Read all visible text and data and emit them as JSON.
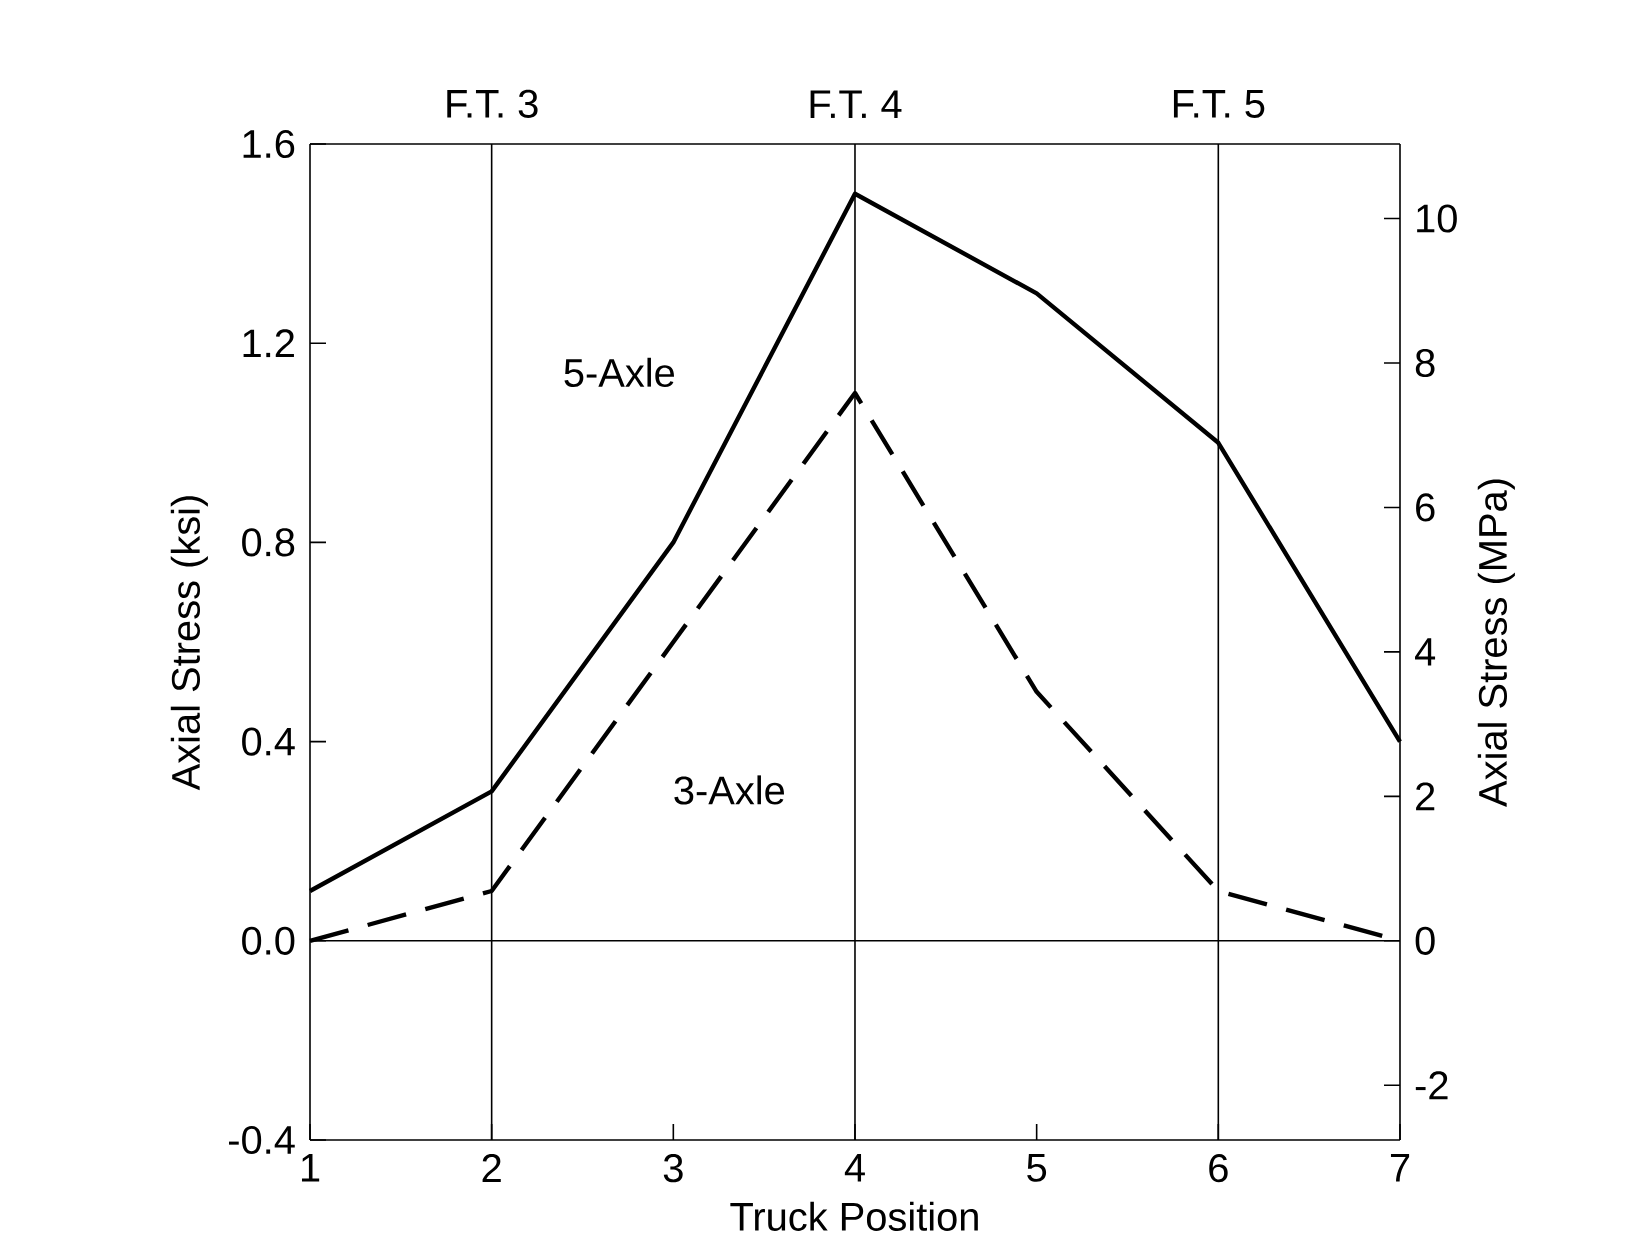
{
  "chart_data": {
    "type": "line",
    "xlabel": "Truck Position",
    "ylabel": "Axial Stress (ksi)",
    "y2label": "Axial Stress (MPa)",
    "x": [
      1,
      2,
      3,
      4,
      5,
      6,
      7
    ],
    "series": [
      {
        "name": "5-Axle",
        "color": "#000000",
        "line_style": "solid",
        "values": [
          0.1,
          0.3,
          0.8,
          1.5,
          1.3,
          1.0,
          0.4
        ]
      },
      {
        "name": "3-Axle",
        "color": "#000000",
        "line_style": "dashed",
        "values": [
          0.0,
          0.1,
          0.6,
          1.1,
          0.5,
          0.1,
          0.0
        ]
      }
    ],
    "xlim": [
      1,
      7
    ],
    "xticks": [
      1,
      2,
      3,
      4,
      5,
      6,
      7
    ],
    "ylim": [
      -0.4,
      1.6
    ],
    "yticks": [
      {
        "value": -0.4,
        "label": "-0.4"
      },
      {
        "value": 0,
        "label": "0.0"
      },
      {
        "value": 0.4,
        "label": "0.4"
      },
      {
        "value": 0.8,
        "label": "0.8"
      },
      {
        "value": 1.2,
        "label": "1.2"
      },
      {
        "value": 1.6,
        "label": "1.6"
      }
    ],
    "y2lim": [
      -2.758,
      11.032
    ],
    "y2ticks": [
      -2,
      0,
      2,
      4,
      6,
      8,
      10
    ],
    "ref_lines": [
      {
        "axis": "x",
        "value": 2,
        "label": "F.T. 3"
      },
      {
        "axis": "x",
        "value": 4,
        "label": "F.T. 4"
      },
      {
        "axis": "x",
        "value": 6,
        "label": "F.T. 5"
      },
      {
        "axis": "y",
        "value": 0
      }
    ],
    "grid": false,
    "legend": false,
    "marker": "none"
  }
}
